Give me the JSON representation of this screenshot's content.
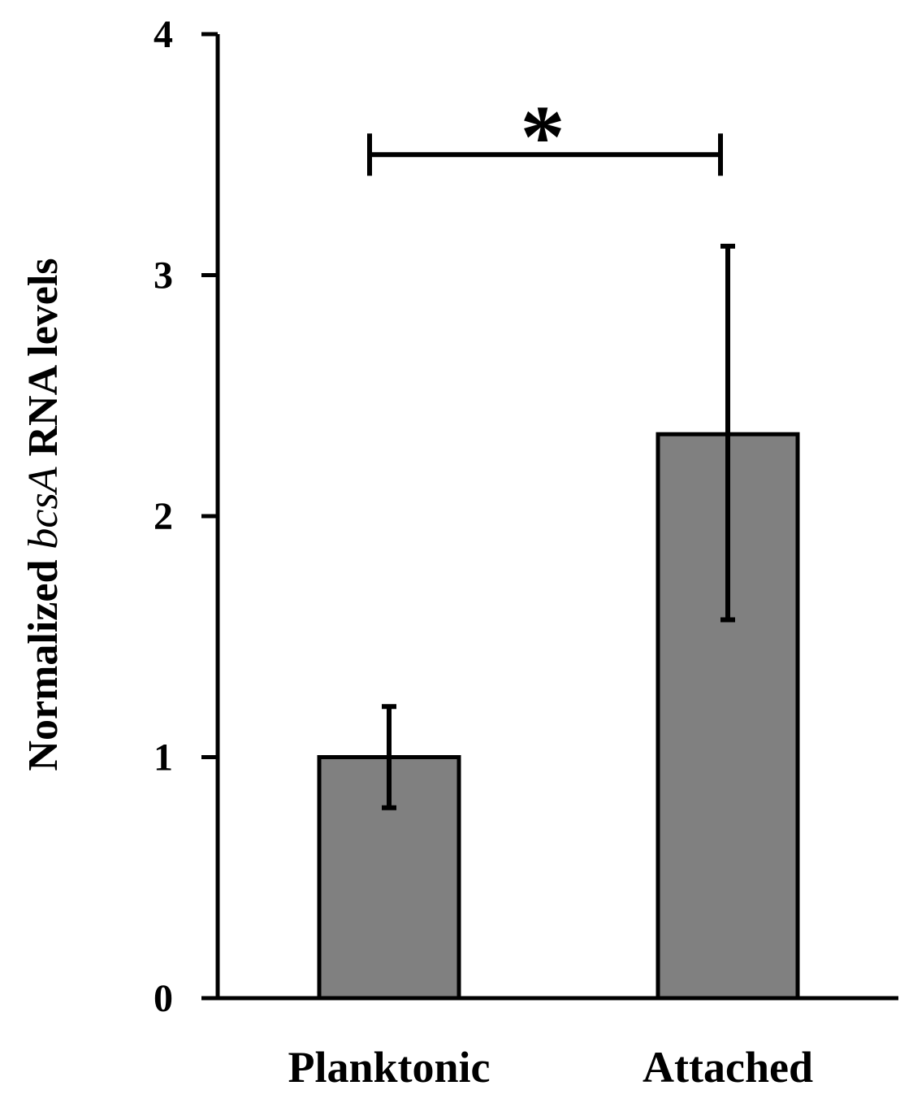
{
  "chart_data": {
    "type": "bar",
    "categories": [
      "Planktonic",
      "Attached"
    ],
    "values": [
      1.0,
      2.34
    ],
    "error_upper": [
      1.21,
      3.12
    ],
    "error_lower": [
      0.79,
      1.57
    ],
    "ylabel_parts": [
      "Normalized ",
      "bcsA",
      " RNA levels"
    ],
    "ylim": [
      0,
      4
    ],
    "yticks": [
      "0",
      "1",
      "2",
      "3",
      "4"
    ],
    "bar_color": "#808080",
    "grid": false,
    "significance": {
      "between": [
        "Planktonic",
        "Attached"
      ],
      "y": 3.5,
      "label": "*"
    }
  }
}
